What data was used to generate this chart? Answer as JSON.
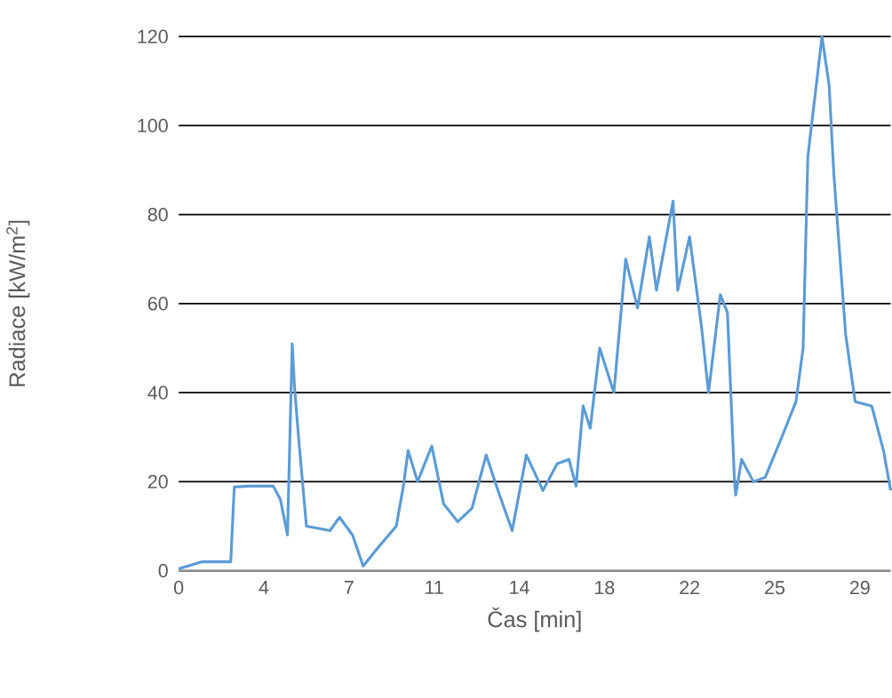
{
  "chart_data": {
    "type": "line",
    "xlabel": "Čas [min]",
    "ylabel": "Radiace [kW/m$^{2}$]",
    "x": [
      0,
      1,
      2.2,
      2.35,
      3,
      4.0,
      4.3,
      4.6,
      4.8,
      4.9,
      5.1,
      5.4,
      6.4,
      6.8,
      7.35,
      7.8,
      8.4,
      9.2,
      9.5,
      9.7,
      10.1,
      10.7,
      11.2,
      11.8,
      12.4,
      13.0,
      13.5,
      14.1,
      14.7,
      15.4,
      16.0,
      16.5,
      16.8,
      17.1,
      17.4,
      17.8,
      18.4,
      18.9,
      19.4,
      19.9,
      20.2,
      20.9,
      21.1,
      21.6,
      22.1,
      22.4,
      22.9,
      23.2,
      23.5,
      23.55,
      23.8,
      24.3,
      24.8,
      25.5,
      26.1,
      26.4,
      26.6,
      26.8,
      27.2,
      27.5,
      27.7,
      28.2,
      28.6,
      29.3,
      29.8,
      30.1
    ],
    "series": [
      {
        "color": "#5b9bd5",
        "values": [
          0.4,
          2,
          2,
          18.8,
          19,
          19,
          16,
          8,
          51,
          41,
          28,
          10,
          9,
          12,
          8,
          1,
          5,
          10,
          19,
          27,
          20,
          28,
          15,
          11,
          14,
          26,
          18,
          9,
          26,
          18,
          24,
          25,
          19,
          37,
          32,
          50,
          40,
          70,
          59,
          75,
          63,
          83,
          63,
          75,
          55,
          40,
          62,
          58,
          20,
          17,
          25,
          20,
          21,
          30,
          38,
          50,
          93,
          102,
          120,
          109,
          89,
          53,
          38,
          37,
          27,
          18
        ]
      }
    ],
    "xlim": [
      0,
      30.1
    ],
    "xticks": [
      {
        "value": 0,
        "label": "0"
      },
      {
        "value": 3.6,
        "label": "4"
      },
      {
        "value": 7.2,
        "label": "7"
      },
      {
        "value": 10.8,
        "label": "11"
      },
      {
        "value": 14.4,
        "label": "14"
      },
      {
        "value": 18,
        "label": "18"
      },
      {
        "value": 21.6,
        "label": "22"
      },
      {
        "value": 25.2,
        "label": "25"
      },
      {
        "value": 28.8,
        "label": "29"
      }
    ],
    "ylim": [
      0,
      120
    ],
    "yticks": [
      0,
      20,
      40,
      60,
      80,
      100,
      120
    ],
    "grid": "y",
    "marker": "none",
    "line_style": "solid"
  }
}
